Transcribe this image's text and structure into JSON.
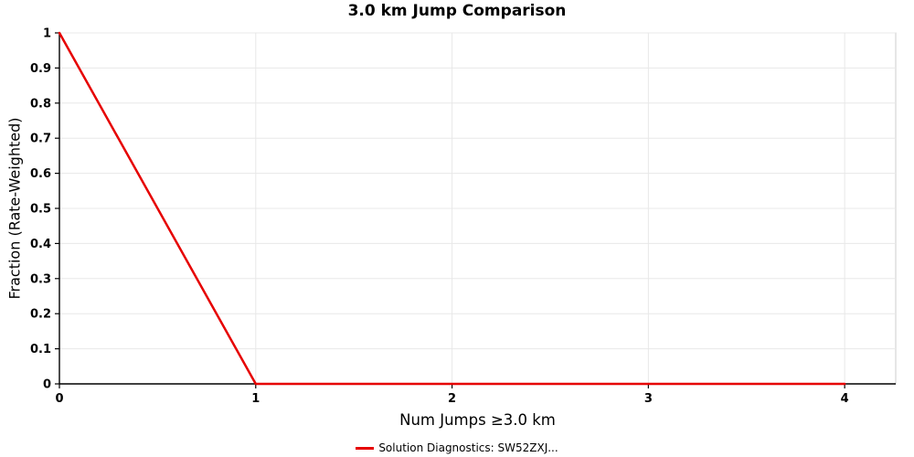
{
  "title": "3.0 km Jump Comparison",
  "chart_data": {
    "type": "line",
    "title": "3.0 km Jump Comparison",
    "xlabel": "Num Jumps ≥3.0 km",
    "ylabel": "Fraction (Rate-Weighted)",
    "xlim": [
      0,
      4.26
    ],
    "ylim": [
      0,
      1
    ],
    "x_ticks": [
      0,
      1,
      2,
      3,
      4
    ],
    "y_ticks": [
      0,
      0.1,
      0.2,
      0.3,
      0.4,
      0.5,
      0.6,
      0.7,
      0.8,
      0.9,
      1
    ],
    "grid": true,
    "legend_position": "bottom",
    "series": [
      {
        "name": "Solution Diagnostics: SW52ZXJ...",
        "color": "#e60000",
        "x": [
          0,
          1,
          2,
          3,
          4
        ],
        "y": [
          1,
          0,
          0,
          0,
          0
        ]
      }
    ],
    "colors": {
      "grid": "#e8e8e8",
      "plot_border": "#cccccc",
      "axis": "#000000"
    }
  }
}
